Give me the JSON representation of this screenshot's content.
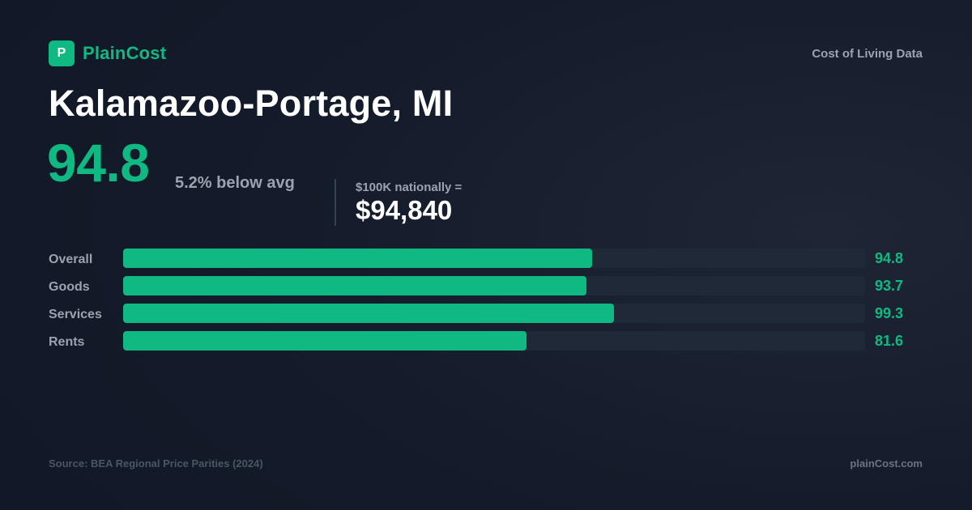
{
  "brand": {
    "logo_letter": "P",
    "name": "PlainCost"
  },
  "header": {
    "tagline": "Cost of Living Data"
  },
  "title": "Kalamazoo-Portage, MI",
  "summary": {
    "index": "94.8",
    "delta_text": "5.2% below avg",
    "equivalent_label": "$100K nationally =",
    "equivalent_value": "$94,840"
  },
  "chart_data": {
    "type": "bar",
    "orientation": "horizontal",
    "categories": [
      "Overall",
      "Goods",
      "Services",
      "Rents"
    ],
    "values": [
      94.8,
      93.7,
      99.3,
      81.6
    ],
    "value_labels": [
      "94.8",
      "93.7",
      "99.3",
      "81.6"
    ],
    "xlim": [
      0,
      150
    ],
    "colors": {
      "bar": "#10b981",
      "track": "#1f2937",
      "value_text": "#10b981"
    }
  },
  "footer": {
    "source": "Source: BEA Regional Price Parities (2024)",
    "site": "plainCost.com"
  }
}
